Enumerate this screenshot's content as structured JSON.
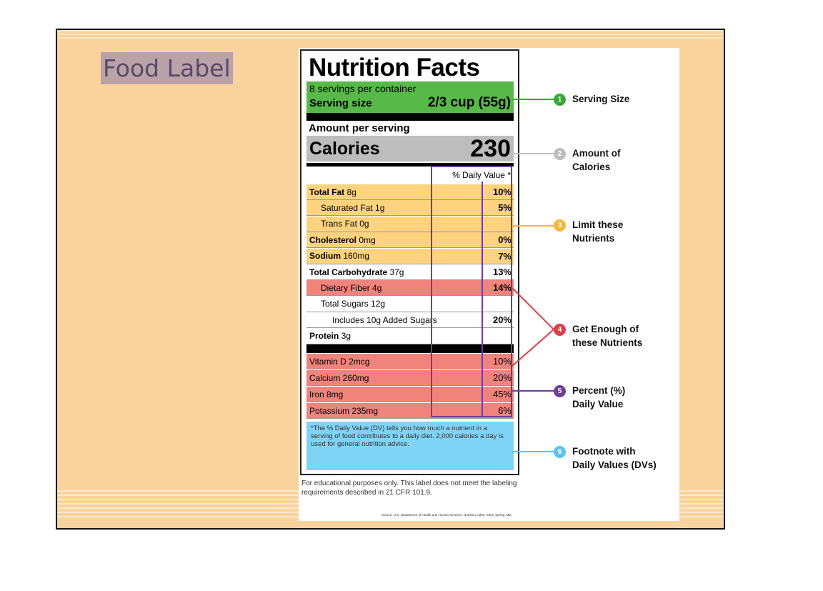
{
  "slide": {
    "title": "Food Label",
    "colors": {
      "background": "#f8d39e",
      "title_highlight": "#b9a3a8"
    }
  },
  "label": {
    "title": "Nutrition Facts",
    "servings_per_container": "8 servings per container",
    "serving_size_label": "Serving size",
    "serving_size_value": "2/3 cup (55g)",
    "amount_per_serving": "Amount per serving",
    "calories_label": "Calories",
    "calories_value": "230",
    "daily_value_header": "% Daily Value *",
    "nutrients": [
      {
        "name": "Total Fat",
        "amount": " 8g",
        "bold": true,
        "indent": 0,
        "dv": "10%"
      },
      {
        "name": "Saturated Fat 1g",
        "amount": "",
        "bold": false,
        "indent": 1,
        "dv": "5%"
      },
      {
        "name": "Trans Fat 0g",
        "amount": "",
        "bold": false,
        "indent": 1,
        "dv": ""
      },
      {
        "name": "Cholesterol",
        "amount": " 0mg",
        "bold": true,
        "indent": 0,
        "dv": "0%"
      },
      {
        "name": "Sodium",
        "amount": " 160mg",
        "bold": true,
        "indent": 0,
        "dv": "7%"
      },
      {
        "name": "Total Carbohydrate",
        "amount": " 37g",
        "bold": true,
        "indent": 0,
        "dv": "13%"
      },
      {
        "name": "Dietary Fiber 4g",
        "amount": "",
        "bold": false,
        "indent": 1,
        "dv": "14%"
      },
      {
        "name": "Total Sugars 12g",
        "amount": "",
        "bold": false,
        "indent": 1,
        "dv": ""
      },
      {
        "name": "Includes 10g Added Sugars",
        "amount": "",
        "bold": false,
        "indent": 2,
        "dv": "20%"
      },
      {
        "name": "Protein",
        "amount": " 3g",
        "bold": true,
        "indent": 0,
        "dv": ""
      }
    ],
    "vitamins": [
      {
        "name": "Vitamin D 2mcg",
        "dv": "10%"
      },
      {
        "name": "Calcium 260mg",
        "dv": "20%"
      },
      {
        "name": "Iron 8mg",
        "dv": "45%"
      },
      {
        "name": "Potassium 235mg",
        "dv": "6%"
      }
    ],
    "footnote": "*The % Daily Value (DV) tells you how much a nutrient in a serving of food contributes to a daily diet. 2,000 calories a day is used for general nutrition advice.",
    "colors": {
      "serving": "#56b948",
      "calories": "#bdbdbd",
      "limit": "#fdd37f",
      "get_enough": "#f1837d",
      "daily_value_frame": "#6e3e98",
      "footnote": "#7fd3f5"
    }
  },
  "educational_note": "For educational purposes only. This label does not meet the labeling requirements described in 21 CFR 101.9.",
  "credit": "Source: U.S. Department of Health and Human Services, Nutrition Label, Silver Spring, MD",
  "callouts": [
    {
      "number": "1",
      "line1": "Serving Size",
      "line2": "",
      "color": "#3aa635"
    },
    {
      "number": "2",
      "line1": "Amount of",
      "line2": "Calories",
      "color": "#bdbdbd"
    },
    {
      "number": "3",
      "line1": "Limit these",
      "line2": "Nutrients",
      "color": "#f6b73c"
    },
    {
      "number": "4",
      "line1": "Get Enough of",
      "line2": "these Nutrients",
      "color": "#e03c4b"
    },
    {
      "number": "5",
      "line1": "Percent (%)",
      "line2": "Daily Value",
      "color": "#6e3e98"
    },
    {
      "number": "6",
      "line1": "Footnote with",
      "line2": "Daily Values (DVs)",
      "color": "#5bc2ee"
    }
  ]
}
